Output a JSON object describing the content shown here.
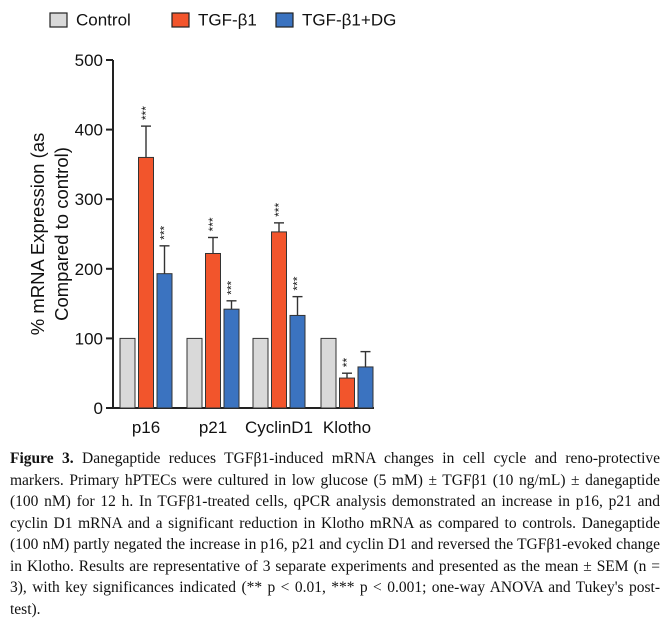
{
  "chart_data": {
    "type": "bar",
    "categories": [
      "p16",
      "p21",
      "CyclinD1",
      "Klotho"
    ],
    "series": [
      {
        "name": "Control",
        "color": "#d9d9d9",
        "values": [
          100,
          100,
          100,
          100
        ],
        "errors": [
          0,
          0,
          0,
          0
        ],
        "significance": [
          "",
          "",
          "",
          ""
        ]
      },
      {
        "name": "TGF-β1",
        "color": "#f2552c",
        "values": [
          360,
          222,
          253,
          43
        ],
        "errors": [
          45,
          23,
          13,
          7
        ],
        "significance": [
          "***",
          "***",
          "***",
          "**"
        ]
      },
      {
        "name": "TGF-β1+DG",
        "color": "#3b73c0",
        "values": [
          193,
          142,
          133,
          59
        ],
        "errors": [
          40,
          12,
          27,
          22
        ],
        "significance": [
          "***",
          "***",
          "***",
          ""
        ]
      }
    ],
    "title": "",
    "xlabel": "",
    "ylabel": "% mRNA Expression (as Compared to control)",
    "ylabel_lines": [
      "% mRNA Expression (as",
      "Compared to control)"
    ],
    "ylim": [
      0,
      500
    ],
    "yticks": [
      "0",
      "100",
      "200",
      "300",
      "400",
      "500"
    ],
    "legend_position": "top"
  },
  "caption": {
    "label": "Figure 3.",
    "text": "Danegaptide reduces TGFβ1-induced mRNA changes in cell cycle and reno-protective markers. Primary hPTECs were cultured in low glucose (5 mM) ± TGFβ1 (10 ng/mL) ± danegaptide (100 nM) for 12 h. In TGFβ1-treated cells, qPCR analysis demonstrated an increase in p16, p21 and cyclin D1 mRNA and a significant reduction in Klotho mRNA as compared to controls. Danegaptide (100 nM) partly negated the increase in p16, p21 and cyclin D1 and reversed the TGFβ1-evoked change in Klotho. Results are representative of 3 separate experiments and presented as the mean ± SEM (n = 3), with key significances indicated (** p < 0.01, *** p < 0.001; one-way ANOVA and Tukey's post-test)."
  }
}
